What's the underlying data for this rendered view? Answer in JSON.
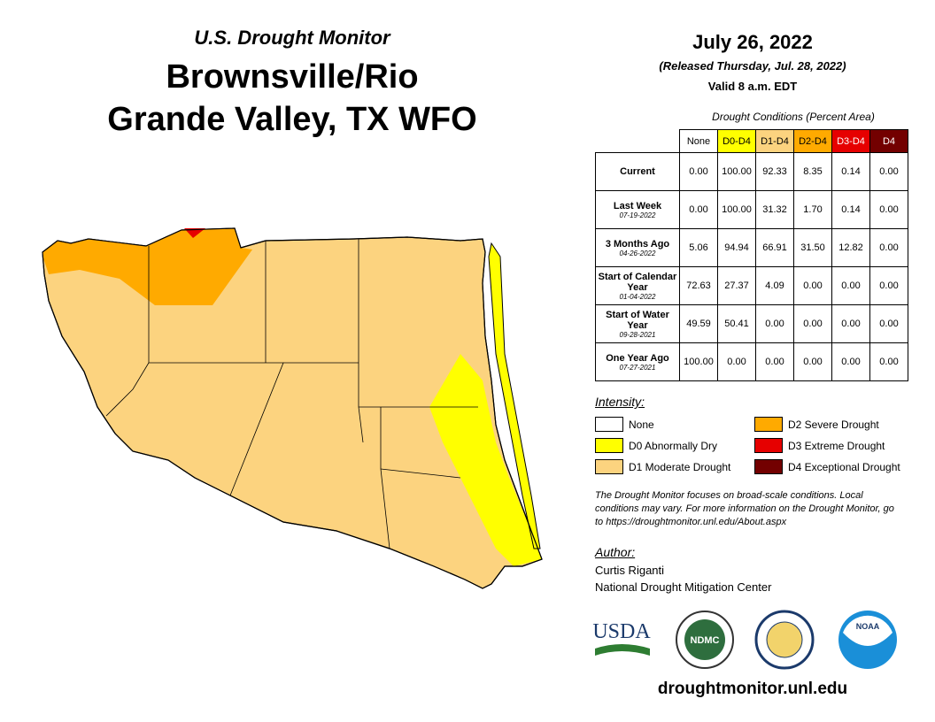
{
  "header": {
    "subtitle": "U.S. Drought Monitor",
    "title_line1": "Brownsville/Rio",
    "title_line2": "Grande Valley, TX WFO"
  },
  "date": {
    "date": "July 26, 2022",
    "released": "(Released Thursday, Jul. 28, 2022)",
    "valid": "Valid 8 a.m. EDT"
  },
  "table": {
    "caption": "Drought Conditions (Percent Area)",
    "columns": [
      {
        "label": "None",
        "color": "#ffffff",
        "text_color": "#000000"
      },
      {
        "label": "D0-D4",
        "color": "#ffff00",
        "text_color": "#000000"
      },
      {
        "label": "D1-D4",
        "color": "#fcd37f",
        "text_color": "#000000"
      },
      {
        "label": "D2-D4",
        "color": "#ffaa00",
        "text_color": "#000000"
      },
      {
        "label": "D3-D4",
        "color": "#e60000",
        "text_color": "#ffffff"
      },
      {
        "label": "D4",
        "color": "#730000",
        "text_color": "#ffffff"
      }
    ],
    "rows": [
      {
        "label": "Current",
        "values": [
          "0.00",
          "100.00",
          "92.33",
          "8.35",
          "0.14",
          "0.00"
        ]
      },
      {
        "label": "Last Week",
        "date": "07-19-2022",
        "values": [
          "0.00",
          "100.00",
          "31.32",
          "1.70",
          "0.14",
          "0.00"
        ]
      },
      {
        "label": "3 Months Ago",
        "date": "04-26-2022",
        "values": [
          "5.06",
          "94.94",
          "66.91",
          "31.50",
          "12.82",
          "0.00"
        ]
      },
      {
        "label": "Start of Calendar Year",
        "date": "01-04-2022",
        "values": [
          "72.63",
          "27.37",
          "4.09",
          "0.00",
          "0.00",
          "0.00"
        ]
      },
      {
        "label": "Start of Water Year",
        "date": "09-28-2021",
        "values": [
          "49.59",
          "50.41",
          "0.00",
          "0.00",
          "0.00",
          "0.00"
        ]
      },
      {
        "label": "One Year Ago",
        "date": "07-27-2021",
        "values": [
          "100.00",
          "0.00",
          "0.00",
          "0.00",
          "0.00",
          "0.00"
        ]
      }
    ]
  },
  "legend": {
    "title": "Intensity:",
    "items": [
      {
        "label": "None",
        "color": "#ffffff"
      },
      {
        "label": "D0 Abnormally Dry",
        "color": "#ffff00"
      },
      {
        "label": "D1 Moderate Drought",
        "color": "#fcd37f"
      },
      {
        "label": "D2 Severe Drought",
        "color": "#ffaa00"
      },
      {
        "label": "D3 Extreme Drought",
        "color": "#e60000"
      },
      {
        "label": "D4 Exceptional Drought",
        "color": "#730000"
      }
    ]
  },
  "note": "The Drought Monitor focuses on broad-scale conditions. Local conditions may vary. For more information on the Drought Monitor, go to https://droughtmonitor.unl.edu/About.aspx",
  "author": {
    "title": "Author:",
    "name": "Curtis Riganti",
    "org": "National Drought Mitigation Center"
  },
  "logos": {
    "usda": "USDA",
    "ndmc": "NDMC",
    "noaa": "NOAA"
  },
  "footer": "droughtmonitor.unl.edu"
}
